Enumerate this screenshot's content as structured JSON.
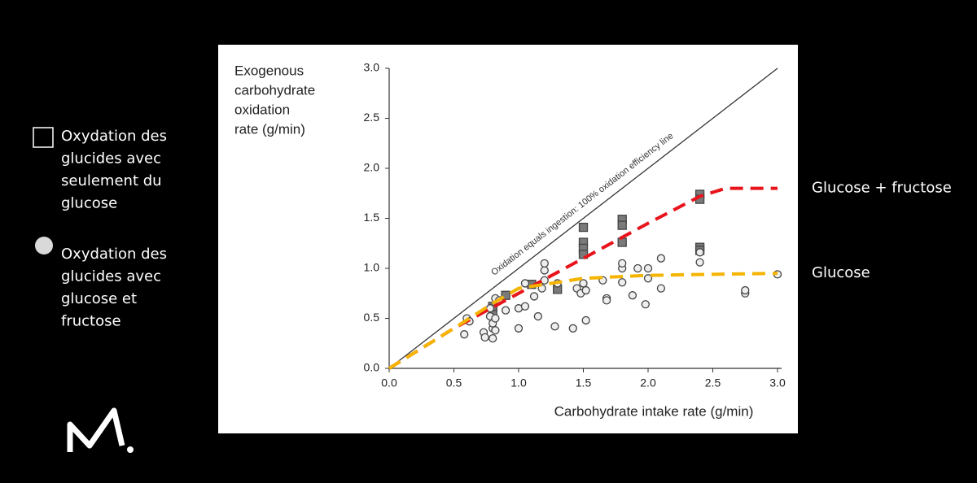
{
  "chart_data": {
    "type": "scatter",
    "x_label": "Carbohydrate intake rate (g/min)",
    "y_label": [
      "Exogenous",
      "carbohydrate",
      "oxidation",
      "rate (g/min)"
    ],
    "xlim": [
      0,
      3
    ],
    "ylim": [
      0,
      3
    ],
    "xticks": [
      {
        "value": 0,
        "label": "0.0"
      },
      0.5,
      {
        "value": 1,
        "label": "1.0"
      },
      1.5,
      {
        "value": 2,
        "label": "2.0"
      },
      2.5,
      {
        "value": 3,
        "label": "3.0"
      }
    ],
    "yticks": [
      {
        "value": 0,
        "label": "0.0"
      },
      0.5,
      {
        "value": 1,
        "label": "1.0"
      },
      1.5,
      {
        "value": 2,
        "label": "2.0"
      },
      2.5,
      {
        "value": 3,
        "label": "3.0"
      }
    ],
    "series": [
      {
        "name": [
          "Oxydation des",
          "glucides avec",
          "seulement du",
          "glucose"
        ],
        "style": "square",
        "color": "#7a7a7a",
        "x": [
          0.8,
          0.8,
          0.9,
          1.1,
          1.3,
          1.5,
          1.5,
          1.5,
          1.5,
          1.8,
          1.8,
          1.8,
          2.4,
          2.4,
          2.4,
          2.4
        ],
        "values": [
          0.57,
          0.62,
          0.73,
          0.84,
          0.79,
          1.41,
          1.26,
          1.2,
          1.14,
          1.49,
          1.43,
          1.26,
          1.74,
          1.69,
          1.21,
          1.18
        ]
      },
      {
        "name": [
          "Oxydation des",
          "glucides avec",
          "glucose et",
          "fructose"
        ],
        "style": "circle",
        "color": "#d9d9d9",
        "x": [
          0.58,
          0.6,
          0.62,
          0.73,
          0.74,
          0.78,
          0.78,
          0.8,
          0.8,
          0.8,
          0.82,
          0.82,
          0.82,
          0.85,
          0.9,
          1.0,
          1.0,
          1.05,
          1.05,
          1.12,
          1.15,
          1.18,
          1.2,
          1.2,
          1.2,
          1.28,
          1.3,
          1.42,
          1.45,
          1.48,
          1.5,
          1.52,
          1.52,
          1.65,
          1.68,
          1.68,
          1.8,
          1.8,
          1.8,
          1.88,
          1.92,
          1.98,
          2.0,
          2.0,
          2.1,
          2.1,
          2.4,
          2.4,
          2.75,
          2.75,
          3.0
        ],
        "values": [
          0.34,
          0.5,
          0.47,
          0.36,
          0.31,
          0.6,
          0.52,
          0.3,
          0.4,
          0.45,
          0.38,
          0.5,
          0.7,
          0.68,
          0.58,
          0.4,
          0.6,
          0.62,
          0.85,
          0.72,
          0.52,
          0.8,
          0.88,
          0.98,
          1.05,
          0.42,
          0.85,
          0.4,
          0.8,
          0.75,
          0.85,
          0.78,
          0.48,
          0.88,
          0.7,
          0.68,
          0.86,
          1.0,
          1.05,
          0.73,
          1.0,
          0.64,
          0.9,
          1.0,
          0.8,
          1.1,
          1.06,
          1.16,
          0.75,
          0.78,
          0.94
        ]
      },
      {
        "name": "Oxidation equals ingestion: 100% oxidation efficiency line",
        "style": "solid",
        "color": "#333333",
        "x": [
          0,
          3
        ],
        "values": [
          0,
          3
        ]
      },
      {
        "name": "Glucose + fructose",
        "style": "dashed",
        "color": "#e8141b",
        "x": [
          0,
          0.5,
          1,
          1.5,
          2,
          2.4,
          2.6,
          3.0
        ],
        "values": [
          0,
          0.4,
          0.75,
          1.1,
          1.45,
          1.72,
          1.8,
          1.8
        ]
      },
      {
        "name": "Glucose",
        "style": "dashed",
        "color": "#f5b400",
        "x": [
          0,
          0.5,
          0.8,
          1,
          1.5,
          2,
          3.0
        ],
        "values": [
          0,
          0.4,
          0.65,
          0.8,
          0.9,
          0.93,
          0.95
        ]
      }
    ]
  }
}
